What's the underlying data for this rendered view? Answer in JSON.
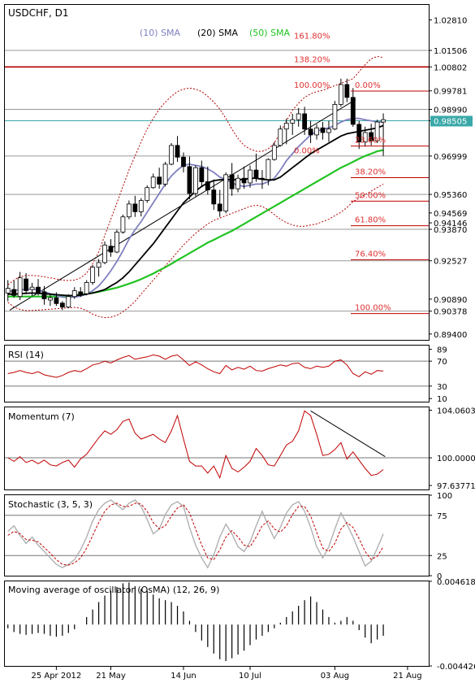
{
  "chart_data": [
    {
      "type": "candlestick",
      "title": "USDCHF, D1",
      "sma_labels": [
        {
          "text": "(10) SMA",
          "color": "#8080c0"
        },
        {
          "text": "(20) SMA",
          "color": "#000000"
        },
        {
          "text": "(50) SMA",
          "color": "#22c322"
        }
      ],
      "price_ticks": [
        "1.02810",
        "1.01506",
        "1.00802",
        "0.99781",
        "0.98990",
        "0.98505",
        "0.96999",
        "0.95360",
        "0.94569",
        "0.94146",
        "0.93870",
        "0.92527",
        "0.90890",
        "0.90378",
        "0.89400"
      ],
      "highlight_price": "0.98505",
      "ylim": [
        0.8915,
        1.0345
      ],
      "fib_levels": [
        {
          "label": "161.80%",
          "price": 1.0215,
          "col": "left"
        },
        {
          "label": "138.20%",
          "price": 1.0115,
          "col": "left"
        },
        {
          "label": "100.00%",
          "price": 1.0005,
          "col": "left"
        },
        {
          "label": "0.00%",
          "price": 1.0005,
          "col": "right"
        },
        {
          "label": "23.60%",
          "price": 0.977,
          "col": "right"
        },
        {
          "label": "0.00%",
          "price": 0.9725,
          "col": "left"
        },
        {
          "label": "38.20%",
          "price": 0.9635,
          "col": "right"
        },
        {
          "label": "50.00%",
          "price": 0.9535,
          "col": "right"
        },
        {
          "label": "61.80%",
          "price": 0.943,
          "col": "right"
        },
        {
          "label": "76.40%",
          "price": 0.9285,
          "col": "right"
        },
        {
          "label": "100.00%",
          "price": 0.9055,
          "col": "right"
        }
      ],
      "trendline": [
        [
          0.8,
          0.9042
        ],
        [
          44.4,
          0.9728
        ]
      ],
      "ohlc": [
        [
          0.9115,
          0.917,
          0.908,
          0.9135
        ],
        [
          0.913,
          0.9168,
          0.9095,
          0.9105
        ],
        [
          0.91,
          0.9205,
          0.9085,
          0.918
        ],
        [
          0.9175,
          0.92,
          0.911,
          0.9125
        ],
        [
          0.913,
          0.9158,
          0.91,
          0.914
        ],
        [
          0.914,
          0.9175,
          0.9105,
          0.9115
        ],
        [
          0.912,
          0.9145,
          0.9065,
          0.909
        ],
        [
          0.9085,
          0.911,
          0.906,
          0.9095
        ],
        [
          0.9095,
          0.9118,
          0.906,
          0.907
        ],
        [
          0.9072,
          0.908,
          0.9042,
          0.9055
        ],
        [
          0.9055,
          0.911,
          0.905,
          0.91
        ],
        [
          0.91,
          0.914,
          0.909,
          0.9125
        ],
        [
          0.912,
          0.914,
          0.9098,
          0.911
        ],
        [
          0.9112,
          0.917,
          0.9105,
          0.916
        ],
        [
          0.916,
          0.9235,
          0.915,
          0.9225
        ],
        [
          0.9225,
          0.926,
          0.9185,
          0.9245
        ],
        [
          0.9245,
          0.9335,
          0.9238,
          0.932
        ],
        [
          0.9315,
          0.9345,
          0.927,
          0.929
        ],
        [
          0.929,
          0.9385,
          0.9285,
          0.9375
        ],
        [
          0.9375,
          0.945,
          0.9368,
          0.944
        ],
        [
          0.944,
          0.951,
          0.943,
          0.9495
        ],
        [
          0.9495,
          0.953,
          0.944,
          0.9462
        ],
        [
          0.9462,
          0.952,
          0.9442,
          0.951
        ],
        [
          0.951,
          0.9575,
          0.95,
          0.9565
        ],
        [
          0.9565,
          0.9625,
          0.956,
          0.961
        ],
        [
          0.961,
          0.965,
          0.956,
          0.958
        ],
        [
          0.958,
          0.9675,
          0.957,
          0.9665
        ],
        [
          0.9665,
          0.9755,
          0.966,
          0.9745
        ],
        [
          0.9745,
          0.9785,
          0.9675,
          0.9695
        ],
        [
          0.9695,
          0.9715,
          0.963,
          0.9655
        ],
        [
          0.9655,
          0.9698,
          0.9515,
          0.954
        ],
        [
          0.954,
          0.966,
          0.9528,
          0.965
        ],
        [
          0.965,
          0.968,
          0.957,
          0.959
        ],
        [
          0.959,
          0.9655,
          0.9535,
          0.9555
        ],
        [
          0.9555,
          0.96,
          0.947,
          0.9495
        ],
        [
          0.9495,
          0.9555,
          0.944,
          0.9465
        ],
        [
          0.9465,
          0.963,
          0.9455,
          0.962
        ],
        [
          0.962,
          0.967,
          0.953,
          0.956
        ],
        [
          0.956,
          0.962,
          0.9545,
          0.9605
        ],
        [
          0.9605,
          0.9655,
          0.956,
          0.9585
        ],
        [
          0.9585,
          0.966,
          0.9565,
          0.964
        ],
        [
          0.964,
          0.971,
          0.959,
          0.9605
        ],
        [
          0.9605,
          0.964,
          0.956,
          0.96
        ],
        [
          0.96,
          0.969,
          0.9575,
          0.9685
        ],
        [
          0.9685,
          0.976,
          0.968,
          0.9745
        ],
        [
          0.9745,
          0.983,
          0.974,
          0.9815
        ],
        [
          0.9815,
          0.986,
          0.975,
          0.984
        ],
        [
          0.984,
          0.988,
          0.979,
          0.9855
        ],
        [
          0.9855,
          0.9905,
          0.9825,
          0.988
        ],
        [
          0.988,
          0.991,
          0.979,
          0.9815
        ],
        [
          0.9815,
          0.985,
          0.9755,
          0.979
        ],
        [
          0.979,
          0.9835,
          0.977,
          0.982
        ],
        [
          0.982,
          0.9845,
          0.977,
          0.98
        ],
        [
          0.98,
          0.985,
          0.976,
          0.9815
        ],
        [
          0.9815,
          0.9935,
          0.981,
          0.992
        ],
        [
          0.992,
          1.003,
          0.991,
          1.0005
        ],
        [
          1.0005,
          1.003,
          0.993,
          0.995
        ],
        [
          0.995,
          0.999,
          0.9825,
          0.9835
        ],
        [
          0.9835,
          0.985,
          0.973,
          0.976
        ],
        [
          0.976,
          0.9825,
          0.974,
          0.98
        ],
        [
          0.98,
          0.9838,
          0.9745,
          0.9765
        ],
        [
          0.9765,
          0.9855,
          0.9755,
          0.9845
        ],
        [
          0.9845,
          0.9882,
          0.97,
          0.9855
        ]
      ],
      "sma10": [
        0.912,
        0.9125,
        0.913,
        0.913,
        0.9132,
        0.9128,
        0.912,
        0.9112,
        0.9104,
        0.9098,
        0.9096,
        0.9098,
        0.9102,
        0.911,
        0.9125,
        0.9145,
        0.9175,
        0.921,
        0.925,
        0.9295,
        0.9345,
        0.9385,
        0.942,
        0.946,
        0.95,
        0.954,
        0.958,
        0.9615,
        0.964,
        0.966,
        0.9665,
        0.966,
        0.9655,
        0.9645,
        0.963,
        0.961,
        0.96,
        0.9585,
        0.9575,
        0.957,
        0.9575,
        0.958,
        0.958,
        0.959,
        0.9605,
        0.964,
        0.968,
        0.971,
        0.974,
        0.9765,
        0.979,
        0.9805,
        0.9815,
        0.982,
        0.983,
        0.9845,
        0.9855,
        0.986,
        0.986,
        0.9855,
        0.985,
        0.9845,
        0.9845
      ],
      "sma20": [
        0.911,
        0.911,
        0.9112,
        0.9114,
        0.9115,
        0.9114,
        0.9112,
        0.911,
        0.9108,
        0.9106,
        0.9104,
        0.9104,
        0.9106,
        0.911,
        0.9115,
        0.9122,
        0.913,
        0.9145,
        0.916,
        0.918,
        0.9205,
        0.9235,
        0.9265,
        0.9295,
        0.9325,
        0.936,
        0.9395,
        0.943,
        0.9465,
        0.95,
        0.9525,
        0.955,
        0.957,
        0.9585,
        0.9595,
        0.9598,
        0.96,
        0.96,
        0.9598,
        0.96,
        0.9605,
        0.9605,
        0.96,
        0.9598,
        0.9598,
        0.961,
        0.963,
        0.965,
        0.967,
        0.969,
        0.971,
        0.9725,
        0.974,
        0.9755,
        0.977,
        0.9785,
        0.9795,
        0.98,
        0.9805,
        0.981,
        0.9815,
        0.982,
        0.983
      ],
      "sma50": [
        0.91,
        0.91,
        0.91,
        0.91,
        0.91,
        0.91,
        0.91,
        0.91,
        0.9101,
        0.9102,
        0.9103,
        0.9105,
        0.9108,
        0.9112,
        0.9116,
        0.912,
        0.9126,
        0.9132,
        0.9138,
        0.9146,
        0.9155,
        0.9164,
        0.9174,
        0.9186,
        0.9198,
        0.9212,
        0.9225,
        0.924,
        0.9255,
        0.927,
        0.9285,
        0.93,
        0.9315,
        0.933,
        0.9342,
        0.9355,
        0.9368,
        0.938,
        0.9395,
        0.941,
        0.9425,
        0.944,
        0.9455,
        0.947,
        0.9485,
        0.95,
        0.9515,
        0.953,
        0.9545,
        0.956,
        0.9575,
        0.959,
        0.9605,
        0.962,
        0.9635,
        0.965,
        0.9662,
        0.9675,
        0.9688,
        0.97,
        0.971,
        0.972,
        0.9725
      ],
      "bb_upper": [
        0.915,
        0.917,
        0.9185,
        0.919,
        0.919,
        0.9188,
        0.9184,
        0.918,
        0.9175,
        0.917,
        0.9168,
        0.917,
        0.918,
        0.92,
        0.924,
        0.929,
        0.936,
        0.943,
        0.95,
        0.957,
        0.964,
        0.97,
        0.976,
        0.9815,
        0.986,
        0.99,
        0.993,
        0.9955,
        0.9975,
        0.9985,
        0.999,
        0.9985,
        0.9975,
        0.9955,
        0.993,
        0.99,
        0.986,
        0.9815,
        0.9775,
        0.9745,
        0.973,
        0.972,
        0.972,
        0.973,
        0.9755,
        0.98,
        0.985,
        0.9895,
        0.9925,
        0.995,
        0.9965,
        0.9975,
        0.998,
        0.999,
        1.0,
        1.001,
        1.002,
        1.003,
        1.006,
        1.009,
        1.0115,
        1.0125,
        1.012
      ],
      "bb_lower": [
        0.9075,
        0.9055,
        0.9045,
        0.904,
        0.904,
        0.9042,
        0.9044,
        0.9046,
        0.9048,
        0.905,
        0.9052,
        0.9054,
        0.905,
        0.904,
        0.9025,
        0.9015,
        0.901,
        0.9012,
        0.902,
        0.9035,
        0.9055,
        0.908,
        0.911,
        0.914,
        0.917,
        0.92,
        0.923,
        0.926,
        0.929,
        0.932,
        0.9345,
        0.937,
        0.939,
        0.941,
        0.9425,
        0.9435,
        0.9445,
        0.9455,
        0.9465,
        0.9475,
        0.9485,
        0.949,
        0.9485,
        0.947,
        0.945,
        0.943,
        0.9415,
        0.9405,
        0.94,
        0.94,
        0.9405,
        0.941,
        0.942,
        0.943,
        0.9445,
        0.946,
        0.948,
        0.9505,
        0.952,
        0.9535,
        0.955,
        0.9565,
        0.958
      ]
    },
    {
      "type": "line",
      "title": "RSI (14)",
      "ylim": [
        5,
        95
      ],
      "ticks": [
        "89",
        "70",
        "30",
        "10"
      ],
      "levels": [
        70,
        30
      ],
      "values": [
        50,
        52,
        55,
        52,
        50,
        53,
        48,
        46,
        44,
        47,
        52,
        55,
        53,
        58,
        64,
        66,
        70,
        67,
        72,
        76,
        79,
        73,
        75,
        77,
        80,
        78,
        73,
        78,
        80,
        72,
        63,
        69,
        64,
        58,
        53,
        50,
        63,
        56,
        60,
        57,
        62,
        55,
        54,
        58,
        61,
        64,
        62,
        66,
        67,
        60,
        58,
        62,
        60,
        62,
        70,
        72,
        64,
        50,
        45,
        53,
        49,
        55,
        54
      ]
    },
    {
      "type": "line",
      "title": "Momentum (7)",
      "ylim": [
        97.3,
        104.3
      ],
      "ticks": [
        "104.0603",
        "100.0000",
        "97.637717"
      ],
      "levels": [
        100.0
      ],
      "values": [
        100.0,
        99.7,
        100.1,
        99.6,
        99.8,
        99.5,
        99.8,
        99.4,
        99.3,
        99.6,
        99.8,
        99.2,
        99.9,
        100.3,
        101.0,
        101.7,
        102.3,
        102.0,
        102.4,
        103.1,
        103.3,
        102.1,
        101.6,
        101.8,
        102.0,
        101.6,
        101.3,
        102.3,
        103.6,
        101.6,
        99.7,
        99.3,
        99.3,
        98.7,
        99.3,
        98.3,
        100.2,
        99.1,
        98.8,
        99.2,
        99.7,
        100.8,
        100.2,
        99.4,
        99.3,
        100.2,
        101.1,
        101.4,
        102.3,
        104.0,
        103.6,
        102.0,
        100.2,
        100.3,
        100.7,
        101.3,
        99.9,
        100.5,
        99.8,
        99.1,
        98.5,
        98.6,
        99.0
      ],
      "trendline": [
        [
          50.0,
          104.0
        ],
        [
          62.3,
          100.1
        ]
      ]
    },
    {
      "type": "line",
      "title": "Stochastic (3, 5, 3)",
      "ylim": [
        0,
        100
      ],
      "ticks": [
        "100",
        "75",
        "25",
        "0"
      ],
      "levels": [
        75,
        25
      ],
      "main": [
        55,
        62,
        50,
        40,
        48,
        38,
        30,
        22,
        14,
        10,
        14,
        20,
        32,
        48,
        68,
        82,
        90,
        94,
        88,
        82,
        90,
        94,
        86,
        70,
        52,
        58,
        76,
        88,
        92,
        86,
        60,
        38,
        22,
        10,
        26,
        48,
        64,
        52,
        36,
        30,
        42,
        62,
        80,
        62,
        46,
        60,
        78,
        88,
        92,
        80,
        60,
        36,
        22,
        36,
        58,
        78,
        64,
        48,
        30,
        12,
        18,
        34,
        52
      ],
      "signal": [
        50,
        55,
        52,
        45,
        44,
        42,
        35,
        28,
        20,
        14,
        13,
        16,
        22,
        34,
        50,
        66,
        80,
        88,
        90,
        86,
        86,
        90,
        89,
        80,
        66,
        58,
        62,
        74,
        84,
        88,
        78,
        58,
        38,
        22,
        20,
        32,
        48,
        56,
        48,
        38,
        36,
        48,
        62,
        68,
        58,
        54,
        62,
        76,
        86,
        86,
        74,
        54,
        34,
        30,
        40,
        58,
        66,
        60,
        46,
        30,
        20,
        24,
        36
      ]
    },
    {
      "type": "bar",
      "title": "Moving average of oscillator (OsMA) (12, 26, 9)",
      "ylim": [
        -0.00442,
        0.00461
      ],
      "ticks": [
        "0.004618",
        "-0.004426"
      ],
      "values": [
        -0.0004,
        -0.0008,
        -0.001,
        -0.0011,
        -0.001,
        -0.0009,
        -0.001,
        -0.0012,
        -0.0013,
        -0.0012,
        -0.0009,
        -0.0005,
        0.0,
        0.0008,
        0.0016,
        0.0024,
        0.0031,
        0.0036,
        0.004,
        0.0044,
        0.0045,
        0.0041,
        0.0038,
        0.0036,
        0.0032,
        0.0028,
        0.0026,
        0.0024,
        0.002,
        0.0014,
        0.0004,
        -0.0008,
        -0.0017,
        -0.0024,
        -0.0031,
        -0.0037,
        -0.0039,
        -0.0036,
        -0.0032,
        -0.0028,
        -0.0022,
        -0.0016,
        -0.0012,
        -0.0008,
        -0.0004,
        0.0002,
        0.0008,
        0.0014,
        0.002,
        0.0026,
        0.003,
        0.0024,
        0.0016,
        0.0008,
        0.0002,
        0.0004,
        0.0008,
        0.0004,
        -0.0006,
        -0.0014,
        -0.002,
        -0.0016,
        -0.0012
      ]
    }
  ],
  "x_axis_labels": [
    {
      "text": "25 Apr 2012",
      "index": 8
    },
    {
      "text": "21 May",
      "index": 17
    },
    {
      "text": "14 Jun",
      "index": 29
    },
    {
      "text": "10 Jul",
      "index": 40
    },
    {
      "text": "03 Aug",
      "index": 54
    },
    {
      "text": "21 Aug",
      "index": 66
    }
  ]
}
